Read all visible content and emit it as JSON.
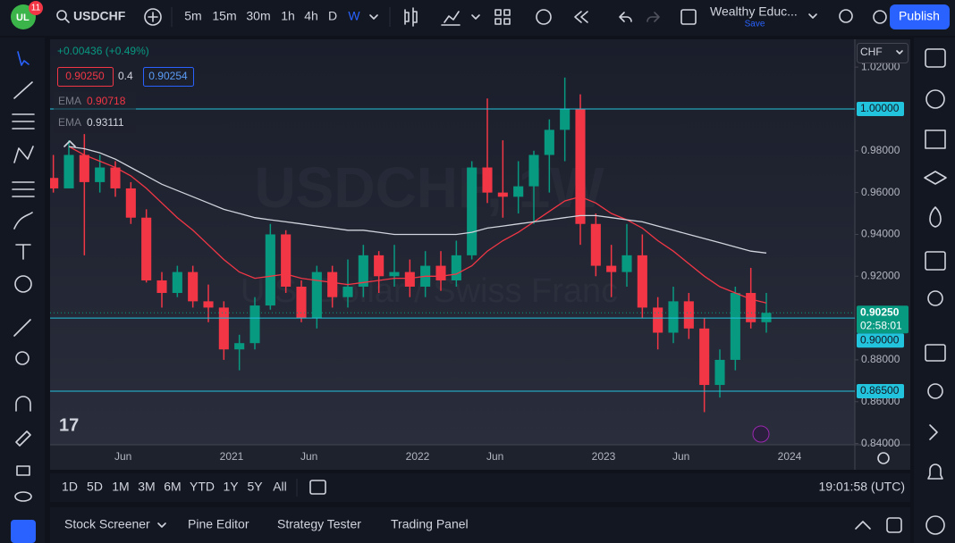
{
  "toolbar": {
    "badge": 11,
    "symbol": "USDCHF",
    "intervals": [
      "5m",
      "15m",
      "30m",
      "1h",
      "4h",
      "D",
      "W"
    ],
    "active_interval": "W",
    "layout_name": "Wealthy Educ...",
    "save": "Save",
    "publish": "Publish"
  },
  "legend": {
    "change": "+0.00436 (+0.49%)",
    "bid": "0.90250",
    "spread": "0.4",
    "ask": "0.90254",
    "indicators": [
      {
        "name": "EMA",
        "value": "0.90718",
        "color": "#f23645"
      },
      {
        "name": "EMA",
        "value": "0.93111",
        "color": "#d1d4dc"
      }
    ]
  },
  "watermark": {
    "title": "USDCHF, 1W",
    "description": "U.S. Dollar / Swiss Franc"
  },
  "chart_data": {
    "type": "candlestick",
    "currency": "CHF",
    "ylim": [
      0.8394,
      1.0333
    ],
    "yticks": [
      {
        "value": 1.02,
        "label": "1.02000"
      },
      {
        "value": 0.98,
        "label": "0.98000"
      },
      {
        "value": 0.96,
        "label": "0.96000"
      },
      {
        "value": 0.94,
        "label": "0.94000"
      },
      {
        "value": 0.92,
        "label": "0.92000"
      },
      {
        "value": 0.88,
        "label": "0.88000"
      },
      {
        "value": 0.86,
        "label": "0.86000"
      },
      {
        "value": 0.84,
        "label": "0.84000"
      }
    ],
    "time_labels": [
      "Jun",
      "2021",
      "Jun",
      "2022",
      "Jun",
      "2023",
      "Jun",
      "2024"
    ],
    "up_color": "#089981",
    "down_color": "#f23645",
    "candles": [
      [
        0.967,
        0.978,
        0.96,
        0.962
      ],
      [
        0.962,
        0.985,
        0.962,
        0.978
      ],
      [
        0.978,
        0.988,
        0.93,
        0.965
      ],
      [
        0.965,
        0.978,
        0.96,
        0.972
      ],
      [
        0.972,
        0.975,
        0.958,
        0.962
      ],
      [
        0.962,
        0.965,
        0.945,
        0.948
      ],
      [
        0.948,
        0.952,
        0.917,
        0.918
      ],
      [
        0.918,
        0.922,
        0.905,
        0.912
      ],
      [
        0.912,
        0.925,
        0.91,
        0.922
      ],
      [
        0.922,
        0.925,
        0.905,
        0.908
      ],
      [
        0.908,
        0.916,
        0.898,
        0.905
      ],
      [
        0.905,
        0.908,
        0.88,
        0.885
      ],
      [
        0.885,
        0.892,
        0.875,
        0.888
      ],
      [
        0.888,
        0.91,
        0.885,
        0.906
      ],
      [
        0.906,
        0.945,
        0.904,
        0.94
      ],
      [
        0.94,
        0.942,
        0.912,
        0.915
      ],
      [
        0.915,
        0.918,
        0.898,
        0.9
      ],
      [
        0.9,
        0.925,
        0.895,
        0.922
      ],
      [
        0.922,
        0.925,
        0.905,
        0.91
      ],
      [
        0.91,
        0.928,
        0.905,
        0.915
      ],
      [
        0.915,
        0.935,
        0.91,
        0.93
      ],
      [
        0.93,
        0.932,
        0.912,
        0.92
      ],
      [
        0.92,
        0.935,
        0.915,
        0.922
      ],
      [
        0.922,
        0.928,
        0.91,
        0.915
      ],
      [
        0.915,
        0.932,
        0.91,
        0.925
      ],
      [
        0.925,
        0.932,
        0.913,
        0.918
      ],
      [
        0.918,
        0.937,
        0.915,
        0.93
      ],
      [
        0.93,
        0.975,
        0.928,
        0.972
      ],
      [
        0.972,
        1.005,
        0.955,
        0.96
      ],
      [
        0.96,
        0.985,
        0.948,
        0.958
      ],
      [
        0.958,
        0.975,
        0.95,
        0.963
      ],
      [
        0.963,
        0.98,
        0.945,
        0.978
      ],
      [
        0.978,
        0.995,
        0.96,
        0.99
      ],
      [
        0.99,
        1.015,
        0.975,
        1.0
      ],
      [
        1.0,
        1.007,
        0.935,
        0.945
      ],
      [
        0.945,
        0.95,
        0.92,
        0.925
      ],
      [
        0.925,
        0.935,
        0.91,
        0.922
      ],
      [
        0.922,
        0.945,
        0.915,
        0.93
      ],
      [
        0.93,
        0.94,
        0.9,
        0.905
      ],
      [
        0.905,
        0.91,
        0.885,
        0.893
      ],
      [
        0.893,
        0.915,
        0.888,
        0.908
      ],
      [
        0.908,
        0.912,
        0.89,
        0.895
      ],
      [
        0.895,
        0.9,
        0.855,
        0.868
      ],
      [
        0.868,
        0.885,
        0.862,
        0.88
      ],
      [
        0.88,
        0.915,
        0.875,
        0.912
      ],
      [
        0.912,
        0.924,
        0.895,
        0.898
      ],
      [
        0.898,
        0.912,
        0.893,
        0.9025
      ]
    ],
    "ema": [
      {
        "color": "#f23645",
        "values": [
          null,
          0.982,
          0.978,
          0.975,
          0.972,
          0.968,
          0.962,
          0.955,
          0.948,
          0.942,
          0.935,
          0.928,
          0.922,
          0.919,
          0.92,
          0.921,
          0.919,
          0.918,
          0.917,
          0.916,
          0.917,
          0.918,
          0.919,
          0.919,
          0.92,
          0.92,
          0.921,
          0.925,
          0.932,
          0.937,
          0.941,
          0.946,
          0.951,
          0.956,
          0.958,
          0.955,
          0.95,
          0.947,
          0.943,
          0.937,
          0.932,
          0.926,
          0.92,
          0.915,
          0.912,
          0.909,
          0.90718
        ]
      },
      {
        "color": "#d1d4dc",
        "values": [
          null,
          0.982,
          0.981,
          0.979,
          0.976,
          0.972,
          0.968,
          0.964,
          0.961,
          0.958,
          0.955,
          0.952,
          0.95,
          0.948,
          0.947,
          0.946,
          0.945,
          0.944,
          0.943,
          0.942,
          0.942,
          0.941,
          0.94,
          0.94,
          0.94,
          0.94,
          0.94,
          0.941,
          0.943,
          0.944,
          0.945,
          0.946,
          0.947,
          0.948,
          0.949,
          0.949,
          0.948,
          0.947,
          0.946,
          0.944,
          0.942,
          0.94,
          0.938,
          0.936,
          0.934,
          0.932,
          0.93111
        ]
      }
    ],
    "levels": [
      {
        "value": 1.0,
        "label": "1.00000"
      },
      {
        "value": 0.9,
        "label": "0.90000"
      },
      {
        "value": 0.865,
        "label": "0.86500"
      }
    ],
    "level_color": "#22c3dc",
    "last_price": {
      "value": 0.9025,
      "label": "0.90250",
      "countdown": "02:58:01",
      "color": "#089981"
    }
  },
  "bottom_bar": {
    "ranges": [
      "1D",
      "5D",
      "1M",
      "3M",
      "6M",
      "YTD",
      "1Y",
      "5Y",
      "All"
    ],
    "clock": "19:01:58 (UTC)"
  },
  "panel_tabs": [
    "Stock Screener",
    "Pine Editor",
    "Strategy Tester",
    "Trading Panel"
  ]
}
